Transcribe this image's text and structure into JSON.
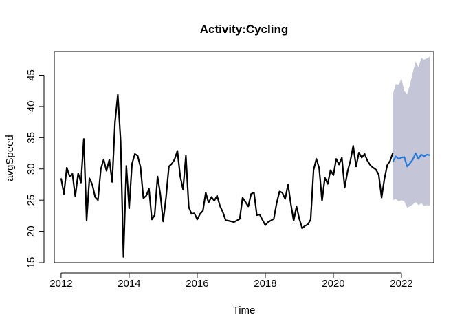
{
  "chart_data": {
    "type": "line",
    "title": "Activity:Cycling",
    "xlabel": "Time",
    "ylabel": "avgSpeed",
    "xlim": [
      2011.8,
      2022.95
    ],
    "ylim": [
      15.0,
      48.8
    ],
    "x_ticks": [
      {
        "value": 2012,
        "label": "2012"
      },
      {
        "value": 2014,
        "label": "2014"
      },
      {
        "value": 2016,
        "label": "2016"
      },
      {
        "value": 2018,
        "label": "2018"
      },
      {
        "value": 2020,
        "label": "2020"
      },
      {
        "value": 2022,
        "label": "2022"
      }
    ],
    "y_ticks": [
      {
        "value": 15,
        "label": "15"
      },
      {
        "value": 20,
        "label": "20"
      },
      {
        "value": 25,
        "label": "25"
      },
      {
        "value": 30,
        "label": "30"
      },
      {
        "value": 35,
        "label": "35"
      },
      {
        "value": 40,
        "label": "40"
      },
      {
        "value": 45,
        "label": "45"
      }
    ],
    "grid": false,
    "colors": {
      "observed": "#000000",
      "forecast": "#2279e0",
      "interval": "#c4c5d6"
    },
    "series": [
      {
        "role": "observed",
        "x": [
          2012.0,
          2012.083,
          2012.167,
          2012.25,
          2012.333,
          2012.417,
          2012.5,
          2012.583,
          2012.667,
          2012.75,
          2012.833,
          2012.917,
          2013.0,
          2013.083,
          2013.167,
          2013.25,
          2013.333,
          2013.417,
          2013.5,
          2013.583,
          2013.667,
          2013.75,
          2013.833,
          2013.917,
          2014.0,
          2014.083,
          2014.167,
          2014.25,
          2014.333,
          2014.417,
          2014.5,
          2014.583,
          2014.667,
          2014.75,
          2014.833,
          2014.917,
          2015.0,
          2015.083,
          2015.167,
          2015.25,
          2015.333,
          2015.417,
          2015.5,
          2015.583,
          2015.667,
          2015.75,
          2015.833,
          2015.917,
          2016.0,
          2016.083,
          2016.167,
          2016.25,
          2016.333,
          2016.417,
          2016.5,
          2016.583,
          2016.667,
          2016.75,
          2016.833,
          2017.083,
          2017.25,
          2017.333,
          2017.5,
          2017.583,
          2017.667,
          2017.75,
          2017.833,
          2018.0,
          2018.083,
          2018.25,
          2018.333,
          2018.417,
          2018.5,
          2018.583,
          2018.667,
          2018.75,
          2018.833,
          2018.917,
          2019.0,
          2019.083,
          2019.167,
          2019.25,
          2019.333,
          2019.417,
          2019.5,
          2019.583,
          2019.667,
          2019.75,
          2019.833,
          2019.917,
          2020.0,
          2020.083,
          2020.167,
          2020.25,
          2020.333,
          2020.417,
          2020.5,
          2020.583,
          2020.667,
          2020.75,
          2020.833,
          2020.917,
          2021.0,
          2021.083,
          2021.167,
          2021.25,
          2021.333,
          2021.417,
          2021.5,
          2021.583,
          2021.667,
          2021.75
        ],
        "values": [
          28.5,
          26.0,
          30.2,
          28.8,
          29.2,
          25.6,
          29.3,
          27.8,
          34.8,
          21.7,
          28.5,
          27.5,
          25.5,
          25.0,
          30.0,
          31.5,
          29.7,
          31.5,
          27.9,
          37.5,
          41.9,
          34.5,
          15.9,
          30.5,
          23.7,
          30.8,
          32.4,
          32.1,
          30.3,
          25.3,
          25.7,
          26.8,
          21.9,
          22.6,
          28.8,
          25.9,
          21.6,
          25.4,
          30.4,
          30.8,
          31.5,
          32.9,
          28.8,
          26.7,
          32.1,
          23.9,
          22.8,
          22.9,
          21.9,
          22.8,
          23.3,
          26.2,
          24.6,
          25.5,
          24.9,
          25.7,
          24.1,
          23.1,
          21.8,
          21.5,
          22.0,
          25.4,
          24.0,
          26.0,
          26.2,
          22.6,
          22.7,
          21.0,
          21.5,
          22.0,
          24.5,
          26.4,
          26.2,
          25.2,
          27.5,
          24.4,
          21.7,
          24.0,
          22.0,
          20.5,
          20.9,
          21.1,
          21.9,
          29.8,
          31.6,
          30.1,
          24.9,
          28.6,
          27.6,
          29.8,
          29.0,
          31.6,
          30.7,
          31.8,
          27.0,
          29.6,
          31.3,
          33.7,
          30.4,
          32.6,
          31.8,
          32.4,
          31.3,
          30.6,
          30.2,
          29.9,
          29.1,
          25.4,
          28.4,
          30.6,
          31.3,
          32.6
        ]
      },
      {
        "role": "forecast",
        "x": [
          2021.75,
          2021.833,
          2021.917,
          2022.0,
          2022.083,
          2022.167,
          2022.25,
          2022.333,
          2022.417,
          2022.5,
          2022.583,
          2022.667,
          2022.75,
          2022.833
        ],
        "values": [
          31.2,
          32.0,
          31.6,
          31.8,
          31.9,
          30.4,
          30.9,
          31.5,
          32.5,
          31.6,
          32.3,
          32.0,
          32.3,
          32.2
        ],
        "lower": [
          25.0,
          25.2,
          24.8,
          25.0,
          24.8,
          23.8,
          24.0,
          24.3,
          24.7,
          24.2,
          24.5,
          24.1,
          24.2,
          24.1
        ],
        "upper": [
          42.0,
          43.6,
          43.5,
          44.5,
          42.5,
          42.0,
          43.5,
          45.5,
          47.2,
          46.3,
          47.8,
          47.5,
          47.7,
          48.0
        ]
      }
    ]
  }
}
